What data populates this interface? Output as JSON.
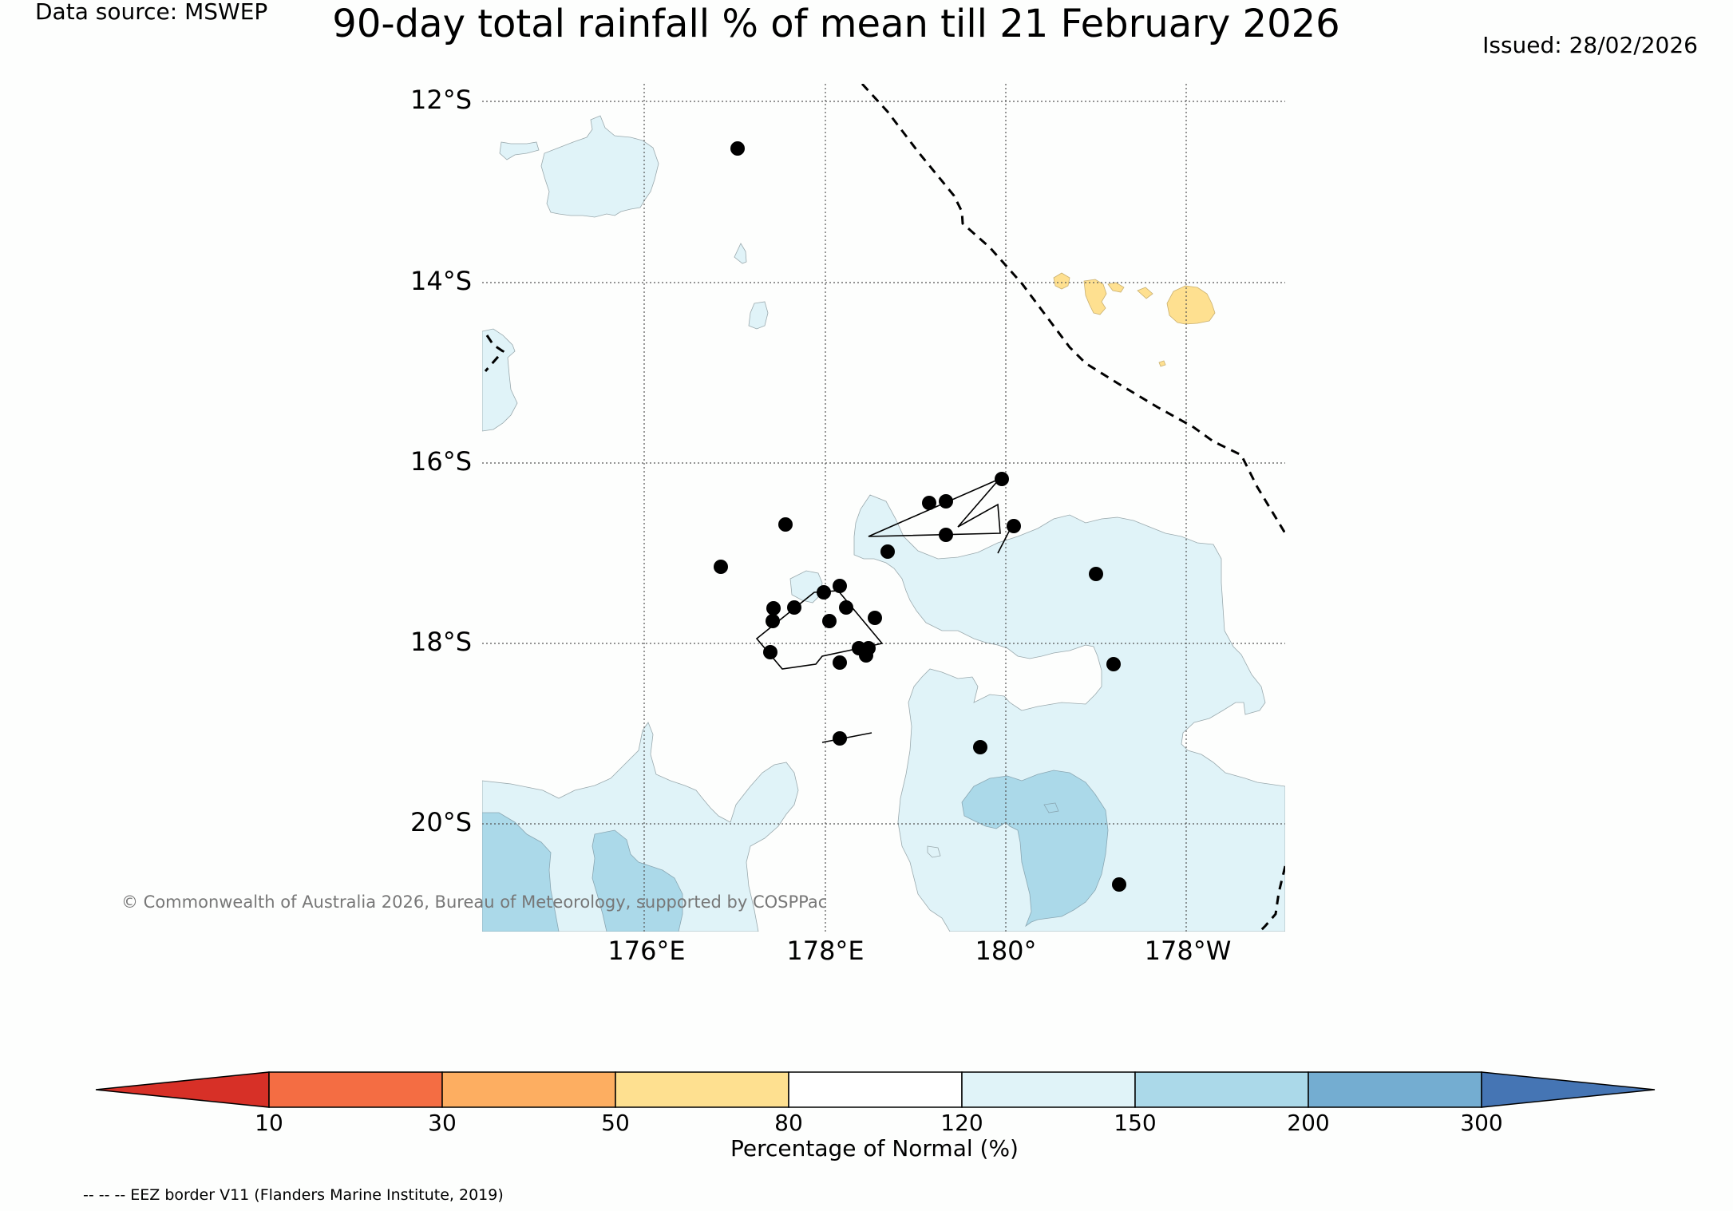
{
  "header": {
    "data_source": "Data source: MSWEP",
    "title": "90-day total rainfall % of mean till 21 February 2026",
    "issued": "Issued: 28/02/2026"
  },
  "map": {
    "lat_labels": [
      "12°S",
      "14°S",
      "16°S",
      "18°S",
      "20°S"
    ],
    "lon_labels": [
      "176°E",
      "178°E",
      "180°",
      "178°W"
    ],
    "copyright": "© Commonwealth of Australia 2026, Bureau of Meteorology, supported by COSPPac"
  },
  "colorbar": {
    "label": "Percentage of Normal (%)",
    "ticks": [
      "10",
      "30",
      "50",
      "80",
      "120",
      "150",
      "200",
      "300"
    ],
    "colors": {
      "under": "#d73027",
      "c10_30": "#f46d43",
      "c30_50": "#fdae61",
      "c50_80": "#fee090",
      "c80_120": "#ffffff",
      "c120_150": "#e0f3f8",
      "c150_200": "#abd9e9",
      "c200_300": "#74add1",
      "over": "#4575b4"
    }
  },
  "footer": {
    "eez_note": "-- -- -- EEZ border V11 (Flanders Marine Institute, 2019)"
  }
}
